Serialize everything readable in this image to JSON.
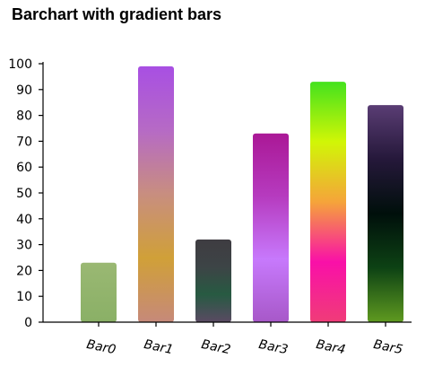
{
  "chart_data": {
    "type": "bar",
    "title": "Barchart with gradient bars",
    "xlabel": "",
    "ylabel": "",
    "categories": [
      "Bar0",
      "Bar1",
      "Bar2",
      "Bar3",
      "Bar4",
      "Bar5"
    ],
    "values": [
      23,
      99,
      32,
      73,
      93,
      84
    ],
    "ylim": [
      0,
      100
    ],
    "yticks": [
      0,
      10,
      20,
      30,
      40,
      50,
      60,
      70,
      80,
      90,
      100
    ],
    "grid": false,
    "gradients": [
      [
        "#9ab873",
        "#8ab066"
      ],
      [
        "#a84fe3",
        "#b66ac5",
        "#c88e7f",
        "#d0a038",
        "#c6897a"
      ],
      [
        "#3e3c41",
        "#3d4446",
        "#275a42",
        "#5a4a63"
      ],
      [
        "#aa1896",
        "#b63bbf",
        "#c779fc",
        "#a758c8"
      ],
      [
        "#44e21d",
        "#d1f606",
        "#f5a43a",
        "#f910a8",
        "#f03c78"
      ],
      [
        "#5a3d74",
        "#25183a",
        "#000f0b",
        "#0d4214",
        "#5f9a20"
      ]
    ]
  }
}
